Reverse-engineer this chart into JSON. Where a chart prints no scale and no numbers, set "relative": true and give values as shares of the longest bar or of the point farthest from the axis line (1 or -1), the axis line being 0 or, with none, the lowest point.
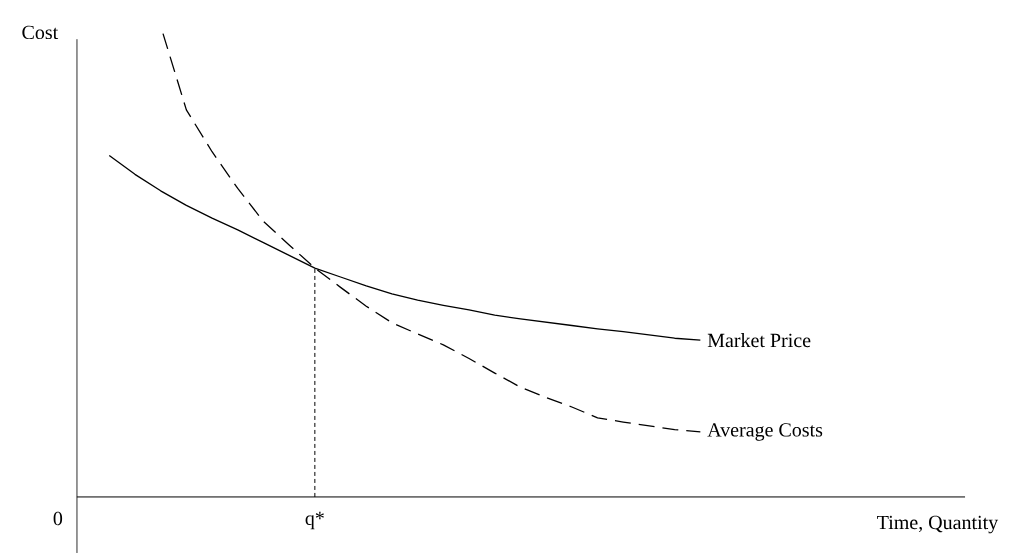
{
  "chart_data": {
    "type": "line",
    "relative": true,
    "ylabel": "Cost",
    "xlabel": "Time, Quantity",
    "categories": [
      "0",
      null,
      null,
      null,
      null,
      null,
      null,
      null,
      null,
      null,
      "q*",
      null,
      null,
      null,
      null,
      null,
      null,
      null,
      null,
      null,
      null,
      null,
      null,
      null,
      null,
      null,
      null,
      null,
      null,
      null,
      null,
      null,
      null,
      null,
      null,
      null
    ],
    "tick_labels": "x",
    "marker": "none",
    "series": [
      {
        "name": "Market Price",
        "color": "#000000",
        "line_style": "solid",
        "values": [
          null,
          null,
          0.725,
          0.685,
          0.65,
          0.619,
          0.592,
          0.567,
          0.54,
          0.513,
          0.486,
          0.467,
          0.448,
          0.431,
          0.418,
          0.407,
          0.397,
          0.386,
          0.378,
          0.371,
          0.364,
          0.357,
          0.351,
          0.344,
          0.337,
          0.333,
          null,
          null,
          null,
          null,
          null,
          null,
          null,
          null,
          null,
          null
        ]
      },
      {
        "name": "Average Costs",
        "color": "#000000",
        "line_style": "dashed",
        "values": [
          null,
          null,
          null,
          null,
          1.0,
          0.822,
          0.733,
          0.655,
          0.585,
          0.535,
          0.486,
          0.445,
          0.405,
          0.37,
          0.346,
          0.323,
          0.294,
          0.263,
          0.233,
          0.211,
          0.191,
          0.168,
          0.159,
          0.151,
          0.143,
          0.138,
          null,
          null,
          null,
          null,
          null,
          null,
          null,
          null,
          null,
          null
        ]
      }
    ],
    "ref_lines": [
      {
        "axis": "x",
        "value": "q*",
        "line_style": "dotted",
        "color": "#000000"
      }
    ]
  }
}
